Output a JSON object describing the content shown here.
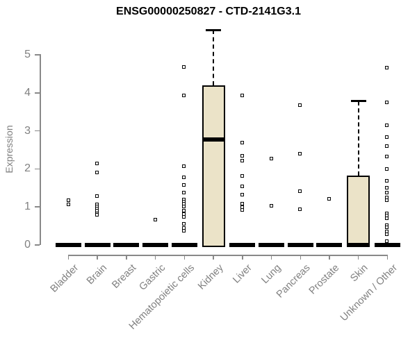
{
  "title": "ENSG00000250827 - CTD-2141G3.1",
  "chart_data": {
    "type": "boxplot",
    "title": "ENSG00000250827 - CTD-2141G3.1",
    "ylabel": "Expression",
    "ylim": [
      0,
      5.7
    ],
    "yticks": [
      0,
      1,
      2,
      3,
      4,
      5
    ],
    "grid": false,
    "categories": [
      "Bladder",
      "Brain",
      "Breast",
      "Gastric",
      "Hematopoietic cells",
      "Kidney",
      "Liver",
      "Lung",
      "Pancreas",
      "Prostate",
      "Skin",
      "Unknown / Other"
    ],
    "series": [
      {
        "name": "Bladder",
        "q1": 0,
        "median": 0,
        "q3": 0,
        "whisker_low": 0,
        "whisker_high": 0,
        "outliers": [
          1.17,
          1.05
        ]
      },
      {
        "name": "Brain",
        "q1": 0,
        "median": 0,
        "q3": 0,
        "whisker_low": 0,
        "whisker_high": 0,
        "outliers": [
          2.13,
          1.89,
          1.28,
          1.05,
          1.0,
          0.95,
          0.89,
          0.82,
          0.78
        ]
      },
      {
        "name": "Breast",
        "q1": 0,
        "median": 0,
        "q3": 0,
        "whisker_low": 0,
        "whisker_high": 0,
        "outliers": []
      },
      {
        "name": "Gastric",
        "q1": 0,
        "median": 0,
        "q3": 0,
        "whisker_low": 0,
        "whisker_high": 0,
        "outliers": [
          0.66
        ]
      },
      {
        "name": "Hematopoietic cells",
        "q1": 0,
        "median": 0,
        "q3": 0,
        "whisker_low": 0,
        "whisker_high": 0,
        "outliers": [
          4.67,
          3.92,
          2.07,
          1.77,
          1.57,
          1.36,
          1.19,
          1.13,
          1.07,
          1.01,
          0.89,
          0.81,
          0.73,
          0.55,
          0.44,
          0.36
        ]
      },
      {
        "name": "Kidney",
        "q1": 0,
        "median": 2.77,
        "q3": 4.2,
        "whisker_low": 0,
        "whisker_high": 5.65,
        "outliers": []
      },
      {
        "name": "Liver",
        "q1": 0,
        "median": 0,
        "q3": 0,
        "whisker_low": 0,
        "whisker_high": 0,
        "outliers": [
          3.93,
          2.68,
          2.33,
          2.2,
          1.8,
          1.53,
          1.31,
          1.07,
          0.99,
          0.92
        ]
      },
      {
        "name": "Lung",
        "q1": 0,
        "median": 0,
        "q3": 0,
        "whisker_low": 0,
        "whisker_high": 0,
        "outliers": [
          2.26,
          1.02
        ]
      },
      {
        "name": "Pancreas",
        "q1": 0,
        "median": 0,
        "q3": 0,
        "whisker_low": 0,
        "whisker_high": 0,
        "outliers": [
          3.67,
          2.39,
          1.41,
          0.93
        ]
      },
      {
        "name": "Prostate",
        "q1": 0,
        "median": 0,
        "q3": 0,
        "whisker_low": 0,
        "whisker_high": 0,
        "outliers": [
          1.2
        ]
      },
      {
        "name": "Skin",
        "q1": 0,
        "median": 0,
        "q3": 1.82,
        "whisker_low": 0,
        "whisker_high": 3.78,
        "outliers": []
      },
      {
        "name": "Unknown / Other",
        "q1": 0,
        "median": 0,
        "q3": 0,
        "whisker_low": 0,
        "whisker_high": 0,
        "outliers": [
          4.65,
          3.75,
          3.14,
          2.82,
          2.59,
          2.32,
          1.99,
          1.68,
          1.5,
          1.36,
          1.24,
          1.17,
          0.83,
          0.77,
          0.7,
          0.52,
          0.45,
          0.34,
          0.27,
          0.1
        ]
      }
    ],
    "colors": {
      "box_fill": "#EBE3C8",
      "box_border": "#000000",
      "axis": "#888888",
      "tick_text": "#808080",
      "title_text": "#000000"
    },
    "legend": "none"
  }
}
